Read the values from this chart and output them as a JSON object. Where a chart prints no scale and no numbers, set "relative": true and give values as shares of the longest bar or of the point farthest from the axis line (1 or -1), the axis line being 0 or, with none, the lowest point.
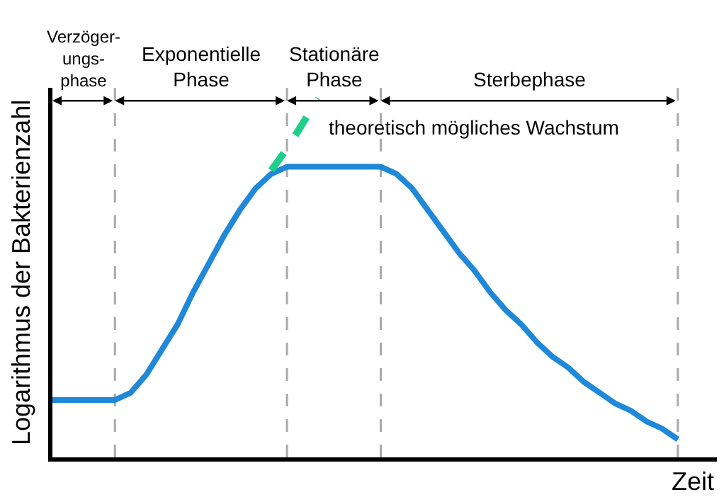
{
  "chart_data": {
    "type": "line",
    "relative": true,
    "xlabel": "Zeit",
    "ylabel": "Logarithmus der Bakterienzahl",
    "categories": [
      null,
      null,
      null,
      null,
      null,
      null,
      null,
      null,
      null,
      null,
      null,
      null,
      null,
      null,
      null,
      null,
      null,
      null,
      null,
      null,
      null,
      null,
      null,
      null,
      null,
      null,
      null,
      null,
      null,
      null,
      null,
      null,
      null,
      null,
      null,
      null,
      null,
      null,
      null,
      null,
      null
    ],
    "series": [
      {
        "color": "#1f88d8",
        "line_style": "solid",
        "values": [
          0.16,
          0.16,
          0.16,
          0.16,
          0.16,
          0.18,
          0.23,
          0.3,
          0.37,
          0.46,
          0.54,
          0.62,
          0.69,
          0.75,
          0.79,
          0.81,
          0.81,
          0.81,
          0.81,
          0.81,
          0.81,
          0.81,
          0.79,
          0.75,
          0.69,
          0.63,
          0.57,
          0.52,
          0.46,
          0.41,
          0.37,
          0.32,
          0.28,
          0.25,
          0.21,
          0.18,
          0.15,
          0.13,
          0.1,
          0.08,
          0.05
        ]
      },
      {
        "name": "theoretisch mögliches Wachstum",
        "color": "#1ecf8c",
        "line_style": "dashed",
        "values": [
          null,
          null,
          null,
          null,
          null,
          null,
          null,
          null,
          null,
          null,
          null,
          null,
          null,
          null,
          0.8,
          0.86,
          0.93,
          1.0,
          null,
          null,
          null,
          null,
          null,
          null,
          null,
          null,
          null,
          null,
          null,
          null,
          null,
          null,
          null,
          null,
          null,
          null,
          null,
          null,
          null,
          null,
          null
        ]
      }
    ],
    "annotations": [
      "Verzöger-ungs-phase",
      "Exponentielle Phase",
      "Stationäre Phase",
      "Sterbephase"
    ],
    "legend": false,
    "grid": "x",
    "marker": "none"
  }
}
